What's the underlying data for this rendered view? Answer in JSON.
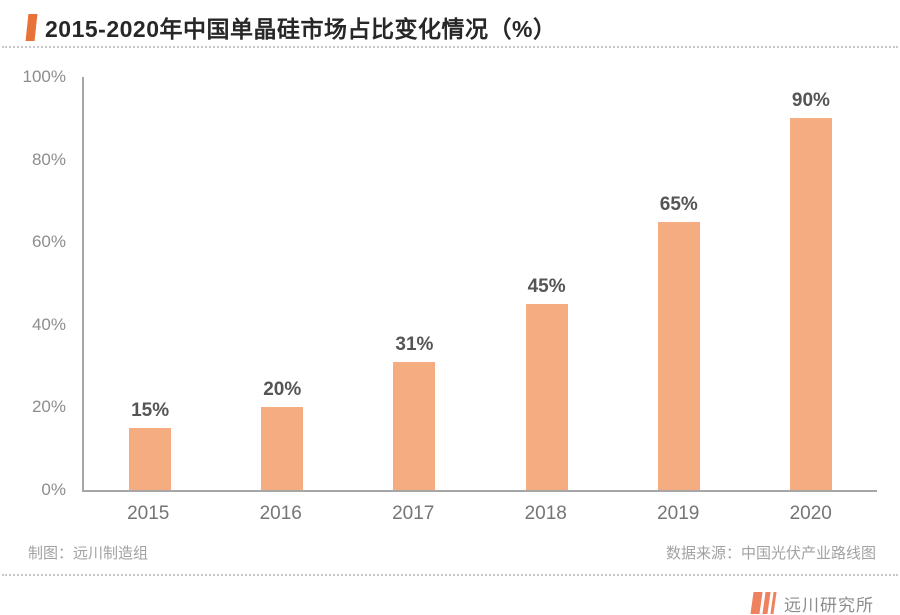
{
  "header": {
    "title": "2015-2020年中国单晶硅市场占比变化情况（%）"
  },
  "chart_data": {
    "type": "bar",
    "title": "2015-2020年中国单晶硅市场占比变化情况（%）",
    "categories": [
      "2015",
      "2016",
      "2017",
      "2018",
      "2019",
      "2020"
    ],
    "values": [
      15,
      20,
      31,
      45,
      65,
      90
    ],
    "value_labels": [
      "15%",
      "20%",
      "31%",
      "45%",
      "65%",
      "90%"
    ],
    "xlabel": "",
    "ylabel": "",
    "ylim": [
      0,
      100
    ],
    "yticks": [
      0,
      20,
      40,
      60,
      80,
      100
    ],
    "ytick_labels": [
      "0%",
      "20%",
      "40%",
      "60%",
      "80%",
      "100%"
    ],
    "grid": false,
    "legend": null,
    "bar_color": "#f4ac80",
    "axis_color": "#a6a6a6"
  },
  "credits": {
    "left": "制图：远川制造组",
    "right": "数据来源：中国光伏产业路线图"
  },
  "footer": {
    "brand": "远川研究所"
  },
  "colors": {
    "accent": "#e87338",
    "bar": "#f4ac80",
    "logo": "#ef815e"
  }
}
